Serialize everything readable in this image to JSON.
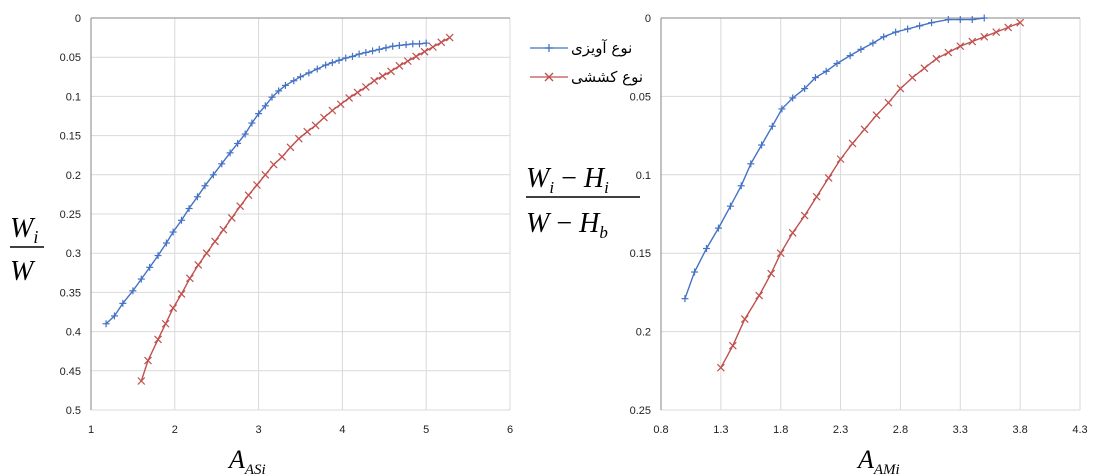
{
  "chart_data": [
    {
      "type": "line",
      "xlim": [
        1,
        6
      ],
      "ylim": [
        0,
        0.5
      ],
      "y_inverted": true,
      "grid": true,
      "x_ticks": [
        "1",
        "2",
        "3",
        "4",
        "5",
        "6"
      ],
      "y_ticks": [
        "0",
        "0.05",
        "0.1",
        "0.15",
        "0.2",
        "0.25",
        "0.3",
        "0.35",
        "0.4",
        "0.45",
        "0.5"
      ],
      "xlabel": {
        "main": "A",
        "sub": "ASi"
      },
      "ylabel": {
        "numerator": {
          "main": "W",
          "sub": "i"
        },
        "denominator": {
          "main": "W",
          "sub": ""
        }
      },
      "series": [
        {
          "name": "نوع آویزی",
          "color": "#4472C4",
          "marker": "plus",
          "x": [
            1.18,
            1.28,
            1.38,
            1.5,
            1.6,
            1.7,
            1.8,
            1.9,
            1.98,
            2.08,
            2.17,
            2.27,
            2.36,
            2.46,
            2.56,
            2.66,
            2.75,
            2.84,
            2.92,
            3.0,
            3.08,
            3.16,
            3.24,
            3.32,
            3.42,
            3.5,
            3.6,
            3.7,
            3.8,
            3.88,
            3.96,
            4.04,
            4.12,
            4.2,
            4.28,
            4.36,
            4.44,
            4.52,
            4.6,
            4.68,
            4.76,
            4.84,
            4.92,
            5.0
          ],
          "y": [
            0.39,
            0.38,
            0.364,
            0.348,
            0.333,
            0.318,
            0.303,
            0.287,
            0.273,
            0.258,
            0.243,
            0.228,
            0.214,
            0.2,
            0.186,
            0.172,
            0.16,
            0.148,
            0.134,
            0.122,
            0.112,
            0.101,
            0.093,
            0.086,
            0.08,
            0.075,
            0.07,
            0.065,
            0.06,
            0.057,
            0.054,
            0.051,
            0.049,
            0.046,
            0.044,
            0.042,
            0.04,
            0.038,
            0.036,
            0.035,
            0.034,
            0.033,
            0.033,
            0.032
          ]
        },
        {
          "name": "نوع کششی",
          "color": "#C0504D",
          "marker": "x",
          "x": [
            1.6,
            1.68,
            1.8,
            1.89,
            1.98,
            2.08,
            2.18,
            2.28,
            2.38,
            2.48,
            2.58,
            2.68,
            2.78,
            2.88,
            2.98,
            3.08,
            3.18,
            3.28,
            3.38,
            3.48,
            3.58,
            3.68,
            3.78,
            3.88,
            3.98,
            4.08,
            4.18,
            4.28,
            4.38,
            4.48,
            4.58,
            4.68,
            4.78,
            4.88,
            4.98,
            5.08,
            5.18,
            5.28
          ],
          "y": [
            0.463,
            0.437,
            0.41,
            0.39,
            0.37,
            0.352,
            0.332,
            0.315,
            0.3,
            0.285,
            0.27,
            0.255,
            0.24,
            0.226,
            0.213,
            0.2,
            0.187,
            0.177,
            0.165,
            0.154,
            0.145,
            0.137,
            0.127,
            0.118,
            0.11,
            0.102,
            0.095,
            0.088,
            0.08,
            0.074,
            0.068,
            0.061,
            0.055,
            0.049,
            0.043,
            0.037,
            0.031,
            0.025
          ]
        }
      ]
    },
    {
      "type": "line",
      "xlim": [
        0.8,
        4.3
      ],
      "ylim": [
        0,
        0.25
      ],
      "y_inverted": true,
      "grid": true,
      "x_ticks": [
        "0.8",
        "1.3",
        "1.8",
        "2.3",
        "2.8",
        "3.3",
        "3.8",
        "4.3"
      ],
      "y_ticks": [
        "0",
        "0.05",
        "0.1",
        "0.15",
        "0.2",
        "0.25"
      ],
      "xlabel": {
        "main": "A",
        "sub": "AMi"
      },
      "ylabel": {
        "numerator": {
          "main": "W",
          "sub": "i",
          "minus": "H",
          "minus_sub": "i"
        },
        "denominator": {
          "main": "W",
          "sub": "",
          "minus": "H",
          "minus_sub": "b"
        }
      },
      "series": [
        {
          "name": "نوع آویزی",
          "color": "#4472C4",
          "marker": "plus",
          "x": [
            1.0,
            1.08,
            1.18,
            1.28,
            1.38,
            1.47,
            1.55,
            1.64,
            1.73,
            1.81,
            1.9,
            2.0,
            2.09,
            2.18,
            2.27,
            2.38,
            2.47,
            2.57,
            2.66,
            2.76,
            2.86,
            2.96,
            3.06,
            3.2,
            3.3,
            3.4,
            3.5
          ],
          "y": [
            0.179,
            0.162,
            0.147,
            0.134,
            0.12,
            0.107,
            0.093,
            0.081,
            0.069,
            0.058,
            0.051,
            0.045,
            0.038,
            0.034,
            0.029,
            0.024,
            0.02,
            0.016,
            0.012,
            0.009,
            0.007,
            0.005,
            0.003,
            0.001,
            0.001,
            0.001,
            0.0
          ]
        },
        {
          "name": "نوع کششی",
          "color": "#C0504D",
          "marker": "x",
          "x": [
            1.3,
            1.4,
            1.5,
            1.62,
            1.72,
            1.8,
            1.9,
            2.0,
            2.1,
            2.2,
            2.3,
            2.4,
            2.5,
            2.6,
            2.7,
            2.8,
            2.9,
            3.0,
            3.1,
            3.2,
            3.3,
            3.4,
            3.5,
            3.6,
            3.7,
            3.8
          ],
          "y": [
            0.223,
            0.209,
            0.192,
            0.177,
            0.163,
            0.15,
            0.137,
            0.126,
            0.114,
            0.102,
            0.09,
            0.08,
            0.071,
            0.062,
            0.054,
            0.045,
            0.038,
            0.032,
            0.026,
            0.022,
            0.018,
            0.015,
            0.012,
            0.009,
            0.006,
            0.003
          ]
        }
      ]
    }
  ],
  "legend": {
    "items": [
      {
        "label": "نوع آویزی",
        "color": "#4472C4",
        "marker": "plus"
      },
      {
        "label": "نوع کششی",
        "color": "#C0504D",
        "marker": "x"
      }
    ]
  },
  "colors": {
    "grid": "#D9D9D9",
    "axis": "#868686"
  }
}
